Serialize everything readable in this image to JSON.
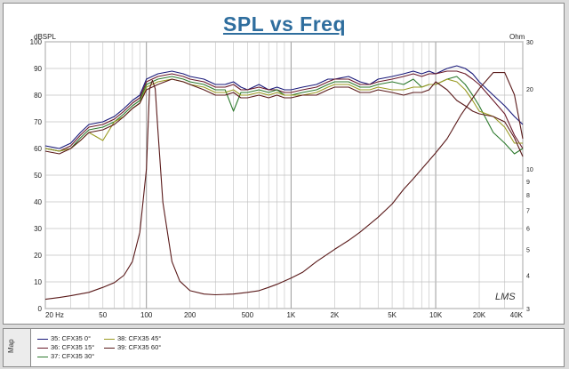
{
  "chart_data": {
    "type": "line",
    "title": "SPL vs Freq",
    "y_left_label": "dBSPL",
    "y_right_label": "Ohm",
    "x_scale": "log",
    "xlim": [
      20,
      40000
    ],
    "ylim_left": [
      0,
      100
    ],
    "ylim_right_log": [
      3,
      30
    ],
    "x_tick_labels": [
      {
        "f": 20,
        "label": "20 Hz"
      },
      {
        "f": 50,
        "label": "50"
      },
      {
        "f": 100,
        "label": "100"
      },
      {
        "f": 200,
        "label": "200"
      },
      {
        "f": 500,
        "label": "500"
      },
      {
        "f": 1000,
        "label": "1K"
      },
      {
        "f": 2000,
        "label": "2K"
      },
      {
        "f": 5000,
        "label": "5K"
      },
      {
        "f": 10000,
        "label": "10K"
      },
      {
        "f": 20000,
        "label": "20K"
      },
      {
        "f": 40000,
        "label": "40K"
      }
    ],
    "y_left_ticks": [
      0,
      10,
      20,
      30,
      40,
      50,
      60,
      70,
      80,
      90,
      100
    ],
    "y_right_ticks": [
      3,
      4,
      5,
      6,
      7,
      8,
      9,
      10,
      20,
      30
    ],
    "y_right_tick_labels": [
      {
        "v": 3,
        "label": "3"
      },
      {
        "v": 4,
        "label": "4"
      },
      {
        "v": 5,
        "label": "5"
      },
      {
        "v": 6,
        "label": "6"
      },
      {
        "v": 7,
        "label": "7"
      },
      {
        "v": 8,
        "label": "8"
      },
      {
        "v": 9,
        "label": "9"
      },
      {
        "v": 10,
        "label": "10"
      },
      {
        "v": 20,
        "label": "20"
      },
      {
        "v": 30,
        "label": "30"
      }
    ],
    "grid": true,
    "watermark": "LMS",
    "series": [
      {
        "name": "35: CFX35  0°",
        "color": "#1a1a7a",
        "axis": "left",
        "x": [
          20,
          25,
          30,
          35,
          40,
          50,
          60,
          70,
          80,
          90,
          100,
          120,
          150,
          180,
          200,
          250,
          300,
          350,
          400,
          450,
          500,
          600,
          700,
          800,
          900,
          1000,
          1200,
          1500,
          1800,
          2000,
          2500,
          3000,
          3500,
          4000,
          5000,
          6000,
          7000,
          8000,
          9000,
          10000,
          12000,
          14000,
          16000,
          18000,
          20000,
          25000,
          30000,
          35000,
          40000
        ],
        "y": [
          61,
          60,
          62,
          66,
          69,
          70,
          72,
          75,
          78,
          80,
          86,
          88,
          89,
          88,
          87,
          86,
          84,
          84,
          85,
          83,
          82,
          84,
          82,
          83,
          82,
          82,
          83,
          84,
          86,
          86,
          87,
          85,
          84,
          86,
          87,
          88,
          89,
          88,
          89,
          88,
          90,
          91,
          90,
          88,
          85,
          80,
          76,
          72,
          69
        ]
      },
      {
        "name": "36: CFX35  15°",
        "color": "#6a1a2a",
        "axis": "left",
        "x": [
          20,
          25,
          30,
          35,
          40,
          50,
          60,
          70,
          80,
          90,
          100,
          120,
          150,
          180,
          200,
          250,
          300,
          350,
          400,
          450,
          500,
          600,
          700,
          800,
          900,
          1000,
          1200,
          1500,
          1800,
          2000,
          2500,
          3000,
          3500,
          4000,
          5000,
          6000,
          7000,
          8000,
          9000,
          10000,
          12000,
          14000,
          16000,
          18000,
          20000,
          25000,
          30000,
          35000,
          40000
        ],
        "y": [
          60,
          59,
          61,
          65,
          68,
          69,
          71,
          74,
          77,
          79,
          85,
          87,
          88,
          87,
          86,
          85,
          83,
          83,
          84,
          82,
          82,
          83,
          82,
          82,
          81,
          81,
          82,
          83,
          85,
          86,
          86,
          84,
          84,
          85,
          86,
          87,
          88,
          87,
          88,
          88,
          89,
          89,
          88,
          86,
          84,
          78,
          73,
          65,
          60
        ]
      },
      {
        "name": "37: CFX35  30°",
        "color": "#2e7a2e",
        "axis": "left",
        "x": [
          20,
          25,
          30,
          35,
          40,
          50,
          60,
          70,
          80,
          90,
          100,
          120,
          150,
          180,
          200,
          250,
          300,
          350,
          400,
          450,
          500,
          600,
          700,
          800,
          900,
          1000,
          1200,
          1500,
          1800,
          2000,
          2500,
          3000,
          3500,
          4000,
          5000,
          6000,
          7000,
          8000,
          9000,
          10000,
          12000,
          14000,
          16000,
          18000,
          20000,
          25000,
          30000,
          35000,
          40000
        ],
        "y": [
          60,
          59,
          60,
          64,
          67,
          68,
          70,
          73,
          76,
          78,
          84,
          86,
          87,
          86,
          85,
          84,
          82,
          82,
          74,
          81,
          81,
          82,
          81,
          82,
          80,
          80,
          81,
          82,
          84,
          85,
          85,
          83,
          83,
          84,
          85,
          84,
          86,
          83,
          84,
          84,
          86,
          87,
          84,
          80,
          76,
          66,
          62,
          58,
          60
        ]
      },
      {
        "name": "38: CFX35  45°",
        "color": "#9a9a22",
        "axis": "left",
        "x": [
          20,
          25,
          30,
          35,
          40,
          50,
          60,
          70,
          80,
          90,
          100,
          120,
          150,
          180,
          200,
          250,
          300,
          350,
          400,
          450,
          500,
          600,
          700,
          800,
          900,
          1000,
          1200,
          1500,
          1800,
          2000,
          2500,
          3000,
          3500,
          4000,
          5000,
          6000,
          7000,
          8000,
          9000,
          10000,
          12000,
          14000,
          16000,
          18000,
          20000,
          25000,
          30000,
          35000,
          40000
        ],
        "y": [
          60,
          59,
          60,
          63,
          66,
          63,
          70,
          72,
          75,
          77,
          83,
          85,
          86,
          85,
          84,
          83,
          81,
          81,
          82,
          80,
          80,
          81,
          80,
          81,
          80,
          80,
          80,
          81,
          83,
          84,
          84,
          82,
          82,
          83,
          82,
          82,
          83,
          83,
          84,
          84,
          86,
          85,
          82,
          78,
          74,
          72,
          68,
          62,
          62
        ]
      },
      {
        "name": "39: CFX35  60°",
        "color": "#5a1a1a",
        "axis": "left",
        "x": [
          20,
          25,
          30,
          35,
          40,
          50,
          60,
          70,
          80,
          90,
          100,
          120,
          150,
          180,
          200,
          250,
          300,
          350,
          400,
          450,
          500,
          600,
          700,
          800,
          900,
          1000,
          1200,
          1500,
          1800,
          2000,
          2500,
          3000,
          3500,
          4000,
          5000,
          6000,
          7000,
          8000,
          9000,
          10000,
          12000,
          14000,
          16000,
          18000,
          20000,
          25000,
          30000,
          35000,
          40000
        ],
        "y": [
          59,
          58,
          60,
          63,
          66,
          67,
          69,
          72,
          75,
          77,
          82,
          84,
          86,
          85,
          84,
          82,
          80,
          80,
          81,
          79,
          79,
          80,
          79,
          80,
          79,
          79,
          80,
          80,
          82,
          83,
          83,
          81,
          81,
          82,
          81,
          80,
          81,
          81,
          82,
          85,
          82,
          78,
          76,
          74,
          73,
          72,
          70,
          64,
          57
        ]
      },
      {
        "name": "Impedance",
        "color": "#5a1a1a",
        "axis": "right",
        "x": [
          20,
          25,
          30,
          40,
          50,
          60,
          70,
          80,
          90,
          100,
          105,
          110,
          115,
          120,
          130,
          150,
          170,
          200,
          250,
          300,
          400,
          500,
          600,
          700,
          800,
          1000,
          1200,
          1500,
          2000,
          2500,
          3000,
          4000,
          5000,
          6000,
          7000,
          8000,
          10000,
          12000,
          15000,
          20000,
          25000,
          30000,
          35000,
          40000
        ],
        "y": [
          3.25,
          3.3,
          3.35,
          3.45,
          3.6,
          3.75,
          4.0,
          4.5,
          5.8,
          10.0,
          20.0,
          21.5,
          20.0,
          14.0,
          7.5,
          4.5,
          3.8,
          3.5,
          3.4,
          3.38,
          3.4,
          3.45,
          3.5,
          3.6,
          3.7,
          3.9,
          4.1,
          4.5,
          5.0,
          5.4,
          5.8,
          6.6,
          7.4,
          8.4,
          9.2,
          10.0,
          11.5,
          13.0,
          16.0,
          20.0,
          23.0,
          23.0,
          19.0,
          13.0
        ]
      }
    ]
  },
  "legend": {
    "map_label": "Map",
    "items": [
      {
        "label": "35: CFX35  0°",
        "color": "#1a1a7a"
      },
      {
        "label": "36: CFX35  15°",
        "color": "#6a1a2a"
      },
      {
        "label": "37: CFX35  30°",
        "color": "#2e7a2e"
      },
      {
        "label": "38: CFX35  45°",
        "color": "#9a9a22"
      },
      {
        "label": "39: CFX35  60°",
        "color": "#5a1a1a"
      }
    ]
  }
}
